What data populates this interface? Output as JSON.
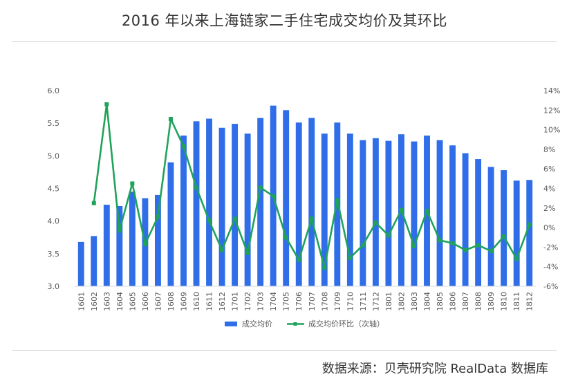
{
  "title": "2016 年以来上海链家二手住宅成交均价及其环比",
  "source": "数据来源：贝壳研究院 RealData 数据库",
  "colors": {
    "bar": "#2F6EE8",
    "line": "#1FA35A",
    "axis": "#d9d9d9",
    "text": "#595959"
  },
  "chart_data": {
    "type": "bar",
    "title": "2016 年以来上海链家二手住宅成交均价及其环比",
    "categories": [
      "1601",
      "1602",
      "1603",
      "1604",
      "1605",
      "1606",
      "1607",
      "1608",
      "1609",
      "1610",
      "1611",
      "1612",
      "1701",
      "1702",
      "1703",
      "1704",
      "1705",
      "1706",
      "1707",
      "1708",
      "1709",
      "1710",
      "1711",
      "1712",
      "1801",
      "1802",
      "1803",
      "1804",
      "1805",
      "1806",
      "1807",
      "1808",
      "1809",
      "1810",
      "1811",
      "1812"
    ],
    "series": [
      {
        "name": "成交均价",
        "type": "bar",
        "axis": "left",
        "values": [
          3.68,
          3.77,
          4.25,
          4.23,
          4.45,
          4.35,
          4.4,
          4.9,
          5.31,
          5.53,
          5.57,
          5.43,
          5.49,
          5.34,
          5.58,
          5.77,
          5.7,
          5.51,
          5.58,
          5.34,
          5.51,
          5.34,
          5.24,
          5.27,
          5.23,
          5.33,
          5.22,
          5.31,
          5.24,
          5.16,
          5.04,
          4.95,
          4.83,
          4.78,
          4.62,
          4.63
        ]
      },
      {
        "name": "成交均价环比（次轴）",
        "type": "line",
        "axis": "right",
        "values": [
          null,
          2.5,
          12.6,
          -0.3,
          4.5,
          -1.7,
          1.1,
          11.1,
          8.3,
          4.1,
          0.7,
          -2.3,
          0.9,
          -2.6,
          4.1,
          3.2,
          -1.0,
          -3.3,
          0.9,
          -4.1,
          2.8,
          -3.1,
          -1.8,
          0.5,
          -0.8,
          1.8,
          -1.9,
          1.7,
          -1.3,
          -1.6,
          -2.3,
          -1.8,
          -2.4,
          -0.9,
          -3.2,
          0.3
        ]
      }
    ],
    "ylim": [
      3.0,
      6.0
    ],
    "y_ticks": [
      "3.0",
      "3.5",
      "4.0",
      "4.5",
      "5.0",
      "5.5",
      "6.0"
    ],
    "y2lim": [
      -6,
      14
    ],
    "y2_ticks": [
      "-6%",
      "-4%",
      "-2%",
      "0%",
      "2%",
      "4%",
      "6%",
      "8%",
      "10%",
      "12%",
      "14%"
    ],
    "legend_position": "bottom",
    "grid": false
  }
}
